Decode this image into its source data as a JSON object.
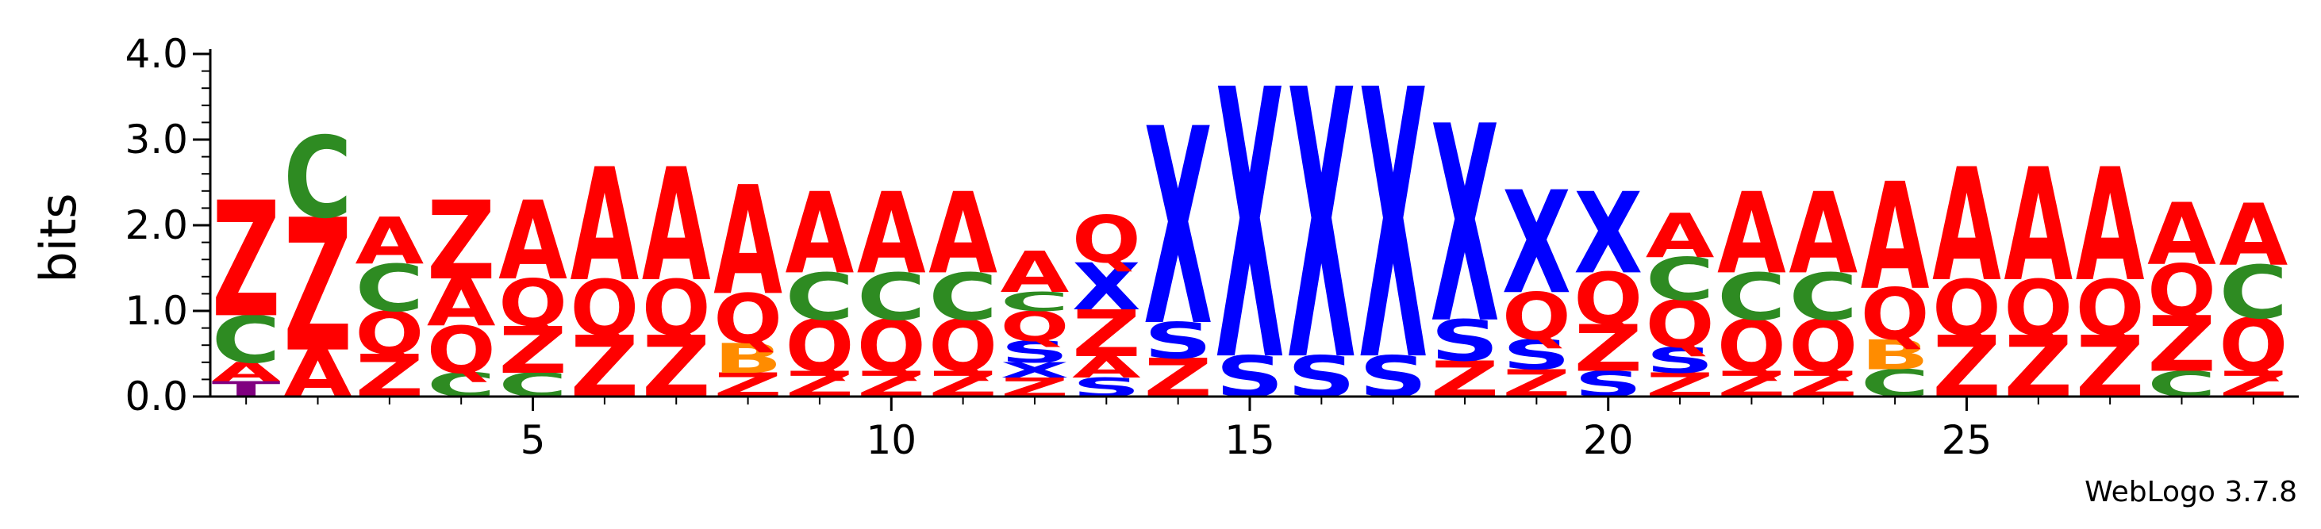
{
  "chart_data": {
    "type": "sequence-logo",
    "ylabel": "bits",
    "ylim": [
      0,
      4.0
    ],
    "yticks": [
      "0.0",
      "1.0",
      "2.0",
      "3.0",
      "4.0"
    ],
    "x_range": [
      1,
      29
    ],
    "xticks": [
      5,
      10,
      15,
      20,
      25
    ],
    "credit": "WebLogo 3.7.8",
    "colors": {
      "A": "#ff0000",
      "Z": "#ff0000",
      "Q": "#ff0000",
      "C": "#2e8b22",
      "X": "#0000ff",
      "S": "#0000ff",
      "B": "#ff8c00",
      "T": "#800080"
    },
    "positions": [
      {
        "pos": 1,
        "stack": [
          [
            "T",
            0.18
          ],
          [
            "A",
            0.22
          ],
          [
            "C",
            0.55
          ],
          [
            "Z",
            1.35
          ]
        ]
      },
      {
        "pos": 2,
        "stack": [
          [
            "A",
            0.55
          ],
          [
            "Z",
            1.55
          ],
          [
            "C",
            0.95
          ]
        ]
      },
      {
        "pos": 3,
        "stack": [
          [
            "Z",
            0.5
          ],
          [
            "Q",
            0.5
          ],
          [
            "C",
            0.55
          ],
          [
            "A",
            0.55
          ]
        ]
      },
      {
        "pos": 4,
        "stack": [
          [
            "C",
            0.28
          ],
          [
            "Q",
            0.55
          ],
          [
            "A",
            0.55
          ],
          [
            "Z",
            0.92
          ]
        ]
      },
      {
        "pos": 5,
        "stack": [
          [
            "C",
            0.28
          ],
          [
            "Z",
            0.55
          ],
          [
            "Q",
            0.55
          ],
          [
            "A",
            0.92
          ]
        ]
      },
      {
        "pos": 6,
        "stack": [
          [
            "Z",
            0.72
          ],
          [
            "Q",
            0.65
          ],
          [
            "A",
            1.32
          ]
        ]
      },
      {
        "pos": 7,
        "stack": [
          [
            "Z",
            0.72
          ],
          [
            "Q",
            0.65
          ],
          [
            "A",
            1.32
          ]
        ]
      },
      {
        "pos": 8,
        "stack": [
          [
            "Z",
            0.28
          ],
          [
            "B",
            0.35
          ],
          [
            "Q",
            0.58
          ],
          [
            "A",
            1.27
          ]
        ]
      },
      {
        "pos": 9,
        "stack": [
          [
            "Z",
            0.3
          ],
          [
            "Q",
            0.6
          ],
          [
            "C",
            0.55
          ],
          [
            "A",
            0.95
          ]
        ]
      },
      {
        "pos": 10,
        "stack": [
          [
            "Z",
            0.3
          ],
          [
            "Q",
            0.6
          ],
          [
            "C",
            0.55
          ],
          [
            "A",
            0.95
          ]
        ]
      },
      {
        "pos": 11,
        "stack": [
          [
            "Z",
            0.3
          ],
          [
            "Q",
            0.6
          ],
          [
            "C",
            0.55
          ],
          [
            "A",
            0.95
          ]
        ]
      },
      {
        "pos": 12,
        "stack": [
          [
            "Z",
            0.22
          ],
          [
            "X",
            0.18
          ],
          [
            "S",
            0.25
          ],
          [
            "Q",
            0.35
          ],
          [
            "C",
            0.22
          ],
          [
            "A",
            0.48
          ]
        ]
      },
      {
        "pos": 13,
        "stack": [
          [
            "S",
            0.22
          ],
          [
            "A",
            0.25
          ],
          [
            "Z",
            0.55
          ],
          [
            "X",
            0.55
          ],
          [
            "Q",
            0.55
          ]
        ]
      },
      {
        "pos": 14,
        "stack": [
          [
            "Z",
            0.45
          ],
          [
            "S",
            0.42
          ],
          [
            "X",
            2.3
          ]
        ]
      },
      {
        "pos": 15,
        "stack": [
          [
            "S",
            0.48
          ],
          [
            "X",
            3.15
          ]
        ]
      },
      {
        "pos": 16,
        "stack": [
          [
            "S",
            0.48
          ],
          [
            "X",
            3.15
          ]
        ]
      },
      {
        "pos": 17,
        "stack": [
          [
            "S",
            0.48
          ],
          [
            "X",
            3.15
          ]
        ]
      },
      {
        "pos": 18,
        "stack": [
          [
            "Z",
            0.42
          ],
          [
            "S",
            0.48
          ],
          [
            "X",
            2.3
          ]
        ]
      },
      {
        "pos": 19,
        "stack": [
          [
            "Z",
            0.32
          ],
          [
            "S",
            0.35
          ],
          [
            "Q",
            0.55
          ],
          [
            "X",
            1.2
          ]
        ]
      },
      {
        "pos": 20,
        "stack": [
          [
            "S",
            0.3
          ],
          [
            "Z",
            0.55
          ],
          [
            "Q",
            0.6
          ],
          [
            "X",
            0.95
          ]
        ]
      },
      {
        "pos": 21,
        "stack": [
          [
            "Z",
            0.28
          ],
          [
            "S",
            0.3
          ],
          [
            "Q",
            0.55
          ],
          [
            "C",
            0.5
          ],
          [
            "A",
            0.52
          ]
        ]
      },
      {
        "pos": 22,
        "stack": [
          [
            "Z",
            0.3
          ],
          [
            "Q",
            0.6
          ],
          [
            "C",
            0.55
          ],
          [
            "A",
            0.95
          ]
        ]
      },
      {
        "pos": 23,
        "stack": [
          [
            "Z",
            0.3
          ],
          [
            "Q",
            0.6
          ],
          [
            "C",
            0.55
          ],
          [
            "A",
            0.95
          ]
        ]
      },
      {
        "pos": 24,
        "stack": [
          [
            "C",
            0.32
          ],
          [
            "B",
            0.35
          ],
          [
            "Q",
            0.6
          ],
          [
            "A",
            1.25
          ]
        ]
      },
      {
        "pos": 25,
        "stack": [
          [
            "Z",
            0.72
          ],
          [
            "Q",
            0.65
          ],
          [
            "A",
            1.32
          ]
        ]
      },
      {
        "pos": 26,
        "stack": [
          [
            "Z",
            0.72
          ],
          [
            "Q",
            0.65
          ],
          [
            "A",
            1.32
          ]
        ]
      },
      {
        "pos": 27,
        "stack": [
          [
            "Z",
            0.72
          ],
          [
            "Q",
            0.65
          ],
          [
            "A",
            1.32
          ]
        ]
      },
      {
        "pos": 28,
        "stack": [
          [
            "C",
            0.3
          ],
          [
            "Z",
            0.65
          ],
          [
            "Q",
            0.6
          ],
          [
            "A",
            0.72
          ]
        ]
      },
      {
        "pos": 29,
        "stack": [
          [
            "Z",
            0.3
          ],
          [
            "Q",
            0.62
          ],
          [
            "C",
            0.62
          ],
          [
            "A",
            0.72
          ]
        ]
      }
    ]
  }
}
